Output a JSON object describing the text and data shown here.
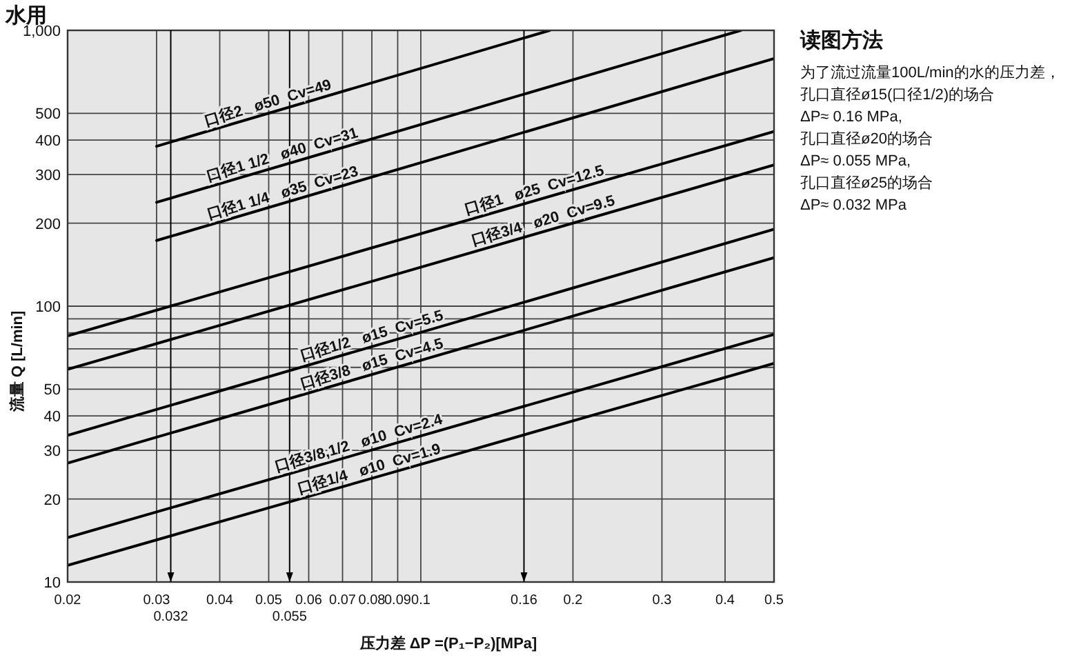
{
  "chart_data": {
    "type": "line",
    "title": "水用",
    "xlabel": "压力差 ΔP =(P₁−P₂)[MPa]",
    "ylabel": "流量 Q [L/min]",
    "log": "xy",
    "grid": true,
    "xlim": [
      0.02,
      0.5
    ],
    "ylim": [
      10,
      1000
    ],
    "xticks": [
      0.02,
      0.03,
      0.04,
      0.05,
      0.06,
      0.07,
      0.08,
      0.09,
      0.1,
      0.2,
      0.3,
      0.4,
      0.5
    ],
    "yticks": [
      10,
      20,
      30,
      40,
      50,
      {
        "value": 60,
        "label": null
      },
      {
        "value": 70,
        "label": null
      },
      {
        "value": 80,
        "label": null
      },
      {
        "value": 90,
        "label": null
      },
      100,
      200,
      300,
      400,
      500,
      {
        "value": 1000,
        "label": "1,000"
      }
    ],
    "ref_lines": [
      {
        "axis": "x",
        "value": 0.032,
        "label": "0.032",
        "color": "#000000"
      },
      {
        "axis": "x",
        "value": 0.055,
        "label": "0.055",
        "color": "#000000"
      },
      {
        "axis": "x",
        "value": 0.16,
        "label": "0.16",
        "color": "#000000"
      }
    ],
    "series": [
      {
        "color": "#000000",
        "x": [
          0.03,
          0.18
        ],
        "values": [
          380,
          1000
        ]
      },
      {
        "color": "#000000",
        "x": [
          0.03,
          0.43
        ],
        "values": [
          238,
          1000
        ]
      },
      {
        "color": "#000000",
        "x": [
          0.03,
          0.5
        ],
        "values": [
          173,
          790
        ]
      },
      {
        "color": "#000000",
        "x": [
          0.02,
          0.5
        ],
        "values": [
          78,
          430
        ]
      },
      {
        "color": "#000000",
        "x": [
          0.02,
          0.5
        ],
        "values": [
          59,
          325
        ]
      },
      {
        "color": "#000000",
        "x": [
          0.02,
          0.5
        ],
        "values": [
          34,
          190
        ]
      },
      {
        "color": "#000000",
        "x": [
          0.02,
          0.5
        ],
        "values": [
          27,
          150
        ]
      },
      {
        "color": "#000000",
        "x": [
          0.02,
          0.5
        ],
        "values": [
          14.5,
          79
        ]
      },
      {
        "color": "#000000",
        "x": [
          0.02,
          0.5
        ],
        "values": [
          11.5,
          62
        ]
      }
    ],
    "annotations": [
      {
        "text": "口径2   ø50  Cv=49",
        "x": 0.0505,
        "y": 503
      },
      {
        "text": "口径1 1/2   ø40  Cv=31",
        "x": 0.0539,
        "y": 327
      },
      {
        "text": "口径1 1/4   ø35  Cv=23",
        "x": 0.054,
        "y": 237
      },
      {
        "text": "口径1   ø25  Cv=12.5",
        "x": 0.17,
        "y": 243
      },
      {
        "text": "口径3/4   ø20  Cv=9.5",
        "x": 0.177,
        "y": 188
      },
      {
        "text": "口径1/2   ø15  Cv=5.5",
        "x": 0.081,
        "y": 72
      },
      {
        "text": "口径3/8   ø15  Cv=4.5",
        "x": 0.081,
        "y": 57
      },
      {
        "text": "口径3/8,1/2   ø10  Cv=2.4",
        "x": 0.0763,
        "y": 29.4
      },
      {
        "text": "口径1/4   ø10  Cv=1.9",
        "x": 0.08,
        "y": 23.7
      },
      "读图方法",
      "为了流过流量100L/min的水的压力差，",
      "孔口直径ø15(口径1/2)的场合",
      "ΔP≈ 0.16 MPa,",
      "孔口直径ø20的场合",
      "ΔP≈ 0.055 MPa,",
      "孔口直径ø25的场合",
      "ΔP≈ 0.032 MPa"
    ]
  }
}
